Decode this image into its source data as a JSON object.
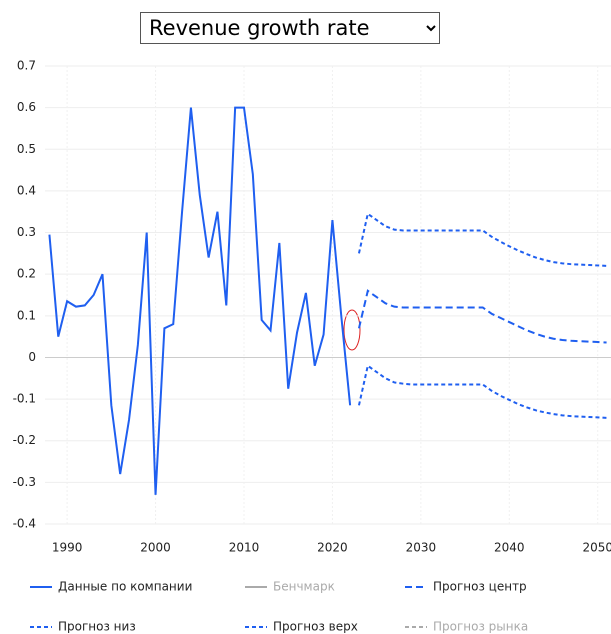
{
  "dropdown": {
    "selected": "Revenue growth rate"
  },
  "chart_data": {
    "type": "line",
    "xlim": [
      1987.5,
      2051.5
    ],
    "xticks": [
      1990,
      2000,
      2010,
      2020,
      2030,
      2040,
      2050
    ],
    "ylim": [
      -0.4,
      0.7
    ],
    "yticks": [
      -0.4,
      -0.3,
      -0.2,
      -0.1,
      0,
      0.1,
      0.2,
      0.3,
      0.4,
      0.5,
      0.6,
      0.7
    ],
    "grid": true,
    "legend": "bottom",
    "series": [
      {
        "name": "Данные по компании",
        "color": "#1f5ff0",
        "style": "solid",
        "hidden": false,
        "x": [
          1988,
          1989,
          1990,
          1991,
          1992,
          1993,
          1994,
          1995,
          1996,
          1997,
          1998,
          1999,
          2000,
          2001,
          2002,
          2003,
          2004,
          2005,
          2006,
          2007,
          2008,
          2009,
          2010,
          2011,
          2012,
          2013,
          2014,
          2015,
          2016,
          2017,
          2018,
          2019,
          2020,
          2021,
          2022
        ],
        "values": [
          0.295,
          0.05,
          0.135,
          0.122,
          0.125,
          0.15,
          0.2,
          -0.115,
          -0.28,
          -0.15,
          0.03,
          0.3,
          -0.33,
          0.07,
          0.08,
          0.35,
          0.6,
          0.39,
          0.24,
          0.35,
          0.125,
          0.6,
          0.6,
          0.44,
          0.09,
          0.065,
          0.275,
          -0.075,
          0.06,
          0.155,
          -0.02,
          0.055,
          0.33,
          0.1,
          -0.115
        ]
      },
      {
        "name": "Бенчмарк",
        "color": "#aaaaaa",
        "style": "solid",
        "hidden": true,
        "x": [],
        "values": []
      },
      {
        "name": "Прогноз центр",
        "color": "#1f5ff0",
        "style": "dash",
        "hidden": false,
        "x": [
          2023,
          2024,
          2025,
          2026,
          2027,
          2028,
          2029,
          2030,
          2031,
          2032,
          2033,
          2034,
          2035,
          2036,
          2037,
          2038,
          2039,
          2040,
          2041,
          2042,
          2043,
          2044,
          2045,
          2046,
          2047,
          2048,
          2049,
          2050,
          2051
        ],
        "values": [
          0.07,
          0.16,
          0.145,
          0.13,
          0.122,
          0.12,
          0.12,
          0.12,
          0.12,
          0.12,
          0.12,
          0.12,
          0.12,
          0.12,
          0.12,
          0.105,
          0.095,
          0.085,
          0.075,
          0.065,
          0.057,
          0.05,
          0.045,
          0.042,
          0.04,
          0.039,
          0.038,
          0.037,
          0.036
        ]
      },
      {
        "name": "Прогноз низ",
        "color": "#1f5ff0",
        "style": "dot",
        "hidden": false,
        "x": [
          2023,
          2024,
          2025,
          2026,
          2027,
          2028,
          2029,
          2030,
          2031,
          2032,
          2033,
          2034,
          2035,
          2036,
          2037,
          2038,
          2039,
          2040,
          2041,
          2042,
          2043,
          2044,
          2045,
          2046,
          2047,
          2048,
          2049,
          2050,
          2051
        ],
        "values": [
          -0.115,
          -0.02,
          -0.035,
          -0.05,
          -0.06,
          -0.063,
          -0.065,
          -0.065,
          -0.065,
          -0.065,
          -0.065,
          -0.065,
          -0.065,
          -0.065,
          -0.065,
          -0.08,
          -0.092,
          -0.102,
          -0.112,
          -0.12,
          -0.127,
          -0.132,
          -0.136,
          -0.139,
          -0.141,
          -0.142,
          -0.143,
          -0.144,
          -0.145
        ]
      },
      {
        "name": "Прогноз верх",
        "color": "#1f5ff0",
        "style": "dot",
        "hidden": false,
        "x": [
          2023,
          2024,
          2025,
          2026,
          2027,
          2028,
          2029,
          2030,
          2031,
          2032,
          2033,
          2034,
          2035,
          2036,
          2037,
          2038,
          2039,
          2040,
          2041,
          2042,
          2043,
          2044,
          2045,
          2046,
          2047,
          2048,
          2049,
          2050,
          2051
        ],
        "values": [
          0.25,
          0.345,
          0.33,
          0.315,
          0.307,
          0.305,
          0.305,
          0.305,
          0.305,
          0.305,
          0.305,
          0.305,
          0.305,
          0.305,
          0.305,
          0.29,
          0.278,
          0.267,
          0.257,
          0.248,
          0.24,
          0.234,
          0.229,
          0.226,
          0.224,
          0.223,
          0.222,
          0.221,
          0.22
        ]
      },
      {
        "name": "Прогноз рынка",
        "color": "#aaaaaa",
        "style": "dot",
        "hidden": true,
        "x": [],
        "values": []
      }
    ]
  }
}
